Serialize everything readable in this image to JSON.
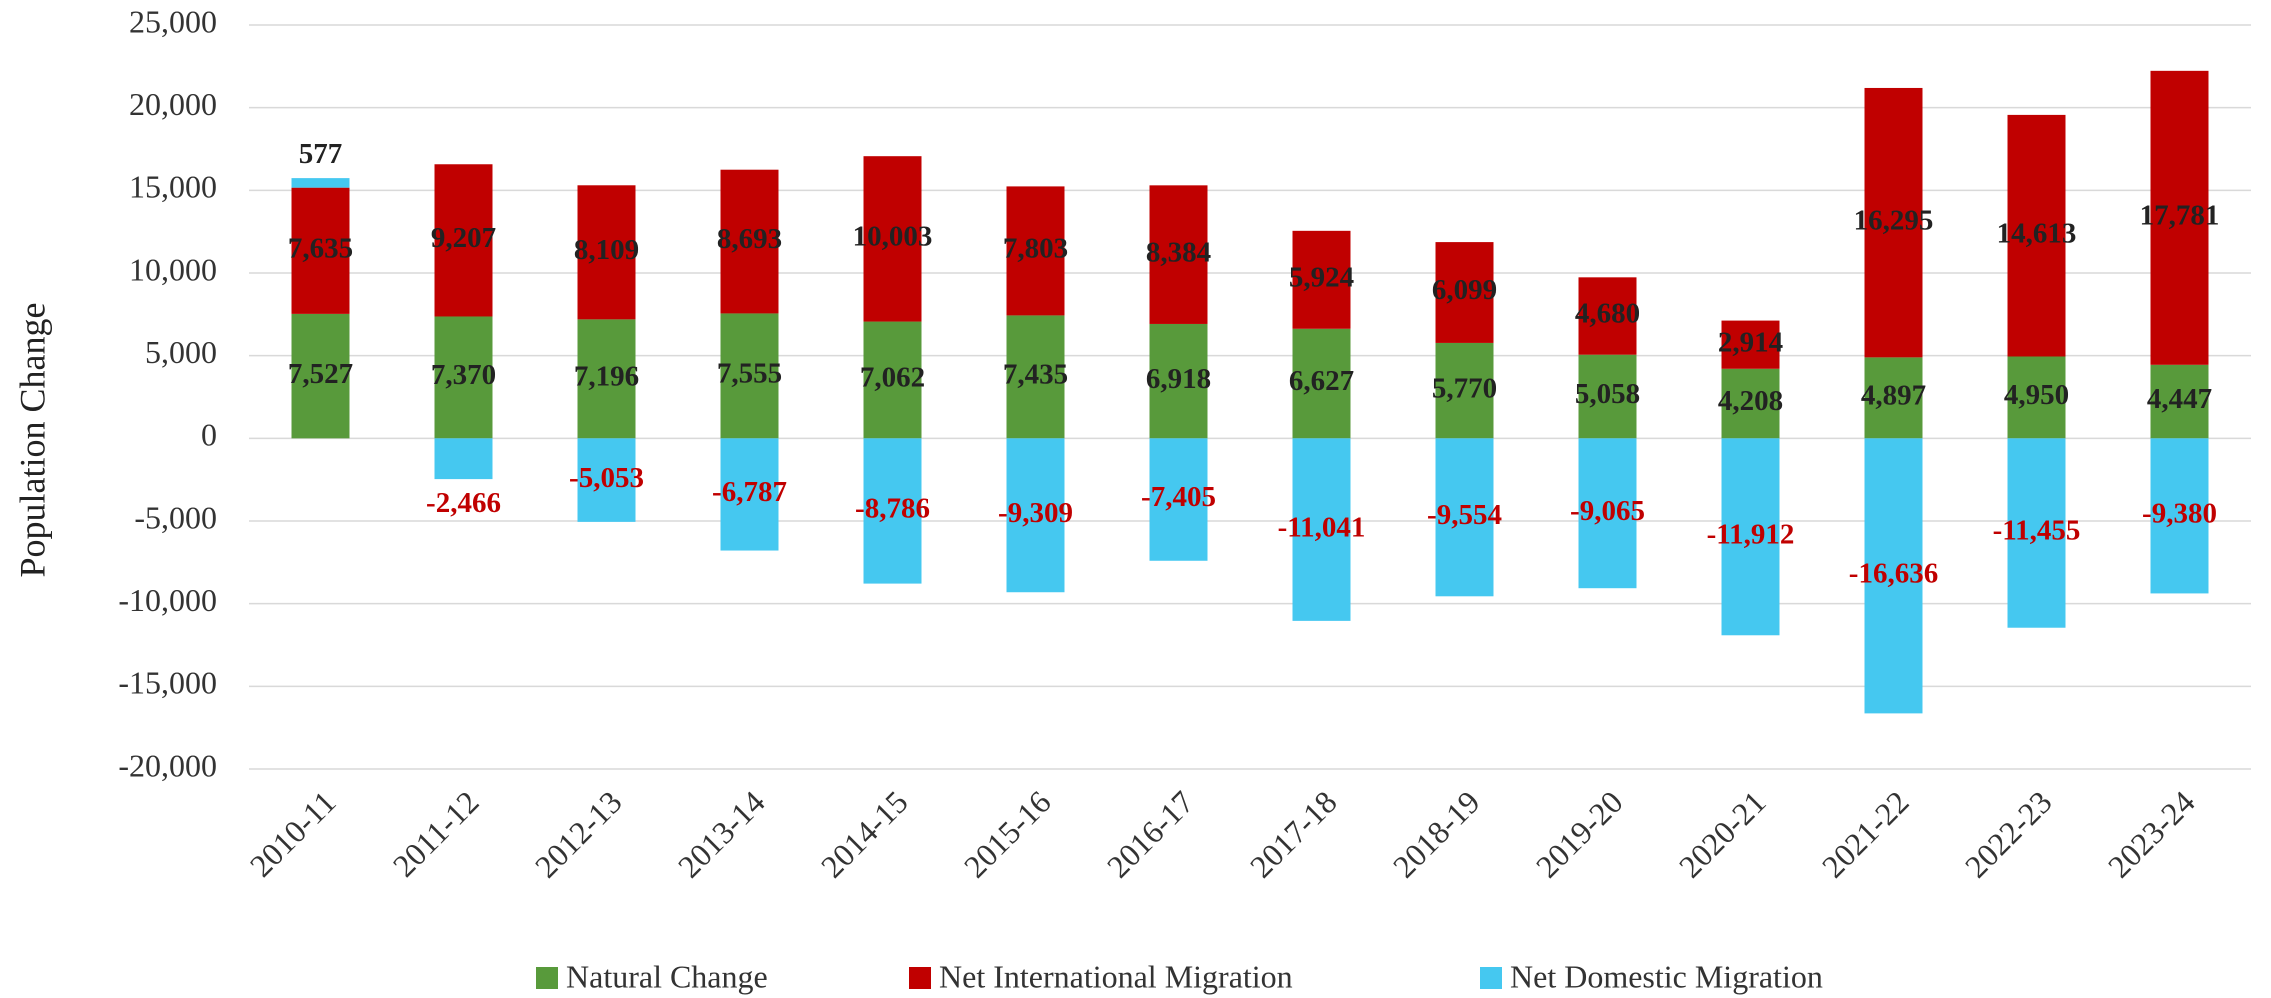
{
  "chart_data": {
    "type": "stacked_bar",
    "y_label": "Population Change",
    "categories": [
      "2010-11",
      "2011-12",
      "2012-13",
      "2013-14",
      "2014-15",
      "2015-16",
      "2016-17",
      "2017-18",
      "2018-19",
      "2019-20",
      "2020-21",
      "2021-22",
      "2022-23",
      "2023-24"
    ],
    "series": [
      {
        "name": "Natural Change",
        "color": "#589a3b",
        "values": [
          7527,
          7370,
          7196,
          7555,
          7062,
          7435,
          6918,
          6627,
          5770,
          5058,
          4208,
          4897,
          4950,
          4447
        ],
        "value_labels": [
          "7,527",
          "7,370",
          "7,196",
          "7,555",
          "7,062",
          "7,435",
          "6,918",
          "6,627",
          "5,770",
          "5,058",
          "4,208",
          "4,897",
          "4,950",
          "4,447"
        ]
      },
      {
        "name": "Net International Migration",
        "color": "#c00000",
        "values": [
          7635,
          9207,
          8109,
          8693,
          10003,
          7803,
          8384,
          5924,
          6099,
          4680,
          2914,
          16295,
          14613,
          17781
        ],
        "value_labels": [
          "7,635",
          "9,207",
          "8,109",
          "8,693",
          "10,003",
          "7,803",
          "8,384",
          "5,924",
          "6,099",
          "4,680",
          "2,914",
          "16,295",
          "14,613",
          "17,781"
        ]
      },
      {
        "name": "Net Domestic Migration",
        "color": "#45c8f0",
        "values": [
          577,
          -2466,
          -5053,
          -6787,
          -8786,
          -9309,
          -7405,
          -11041,
          -9554,
          -9065,
          -11912,
          -16636,
          -11455,
          -9380
        ],
        "value_labels": [
          "577",
          "-2,466",
          "-5,053",
          "-6,787",
          "-8,786",
          "-9,309",
          "-7,405",
          "-11,041",
          "-9,554",
          "-9,065",
          "-11,912",
          "-16,636",
          "-11,455",
          "-9,380"
        ]
      }
    ],
    "ylim": [
      -20000,
      25000
    ],
    "yticks": [
      {
        "value": -20000,
        "label": "-20,000"
      },
      {
        "value": -15000,
        "label": "-15,000"
      },
      {
        "value": -10000,
        "label": "-10,000"
      },
      {
        "value": -5000,
        "label": "-5,000"
      },
      0,
      {
        "value": 5000,
        "label": "5,000"
      },
      {
        "value": 10000,
        "label": "10,000"
      },
      {
        "value": 15000,
        "label": "15,000"
      },
      {
        "value": 20000,
        "label": "20,000"
      },
      {
        "value": 25000,
        "label": "25,000"
      }
    ],
    "grid": true,
    "legend": "bottom"
  }
}
